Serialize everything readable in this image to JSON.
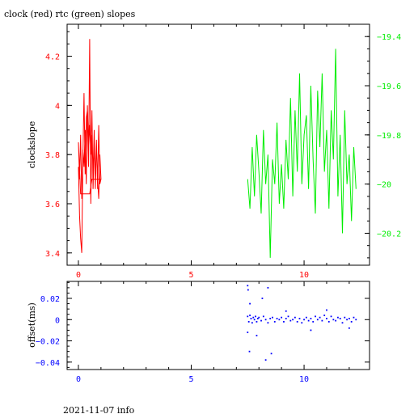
{
  "title": "clock (red) rtc (green) slopes",
  "footer": "2021-11-07 info",
  "colors": {
    "clock": "#ff0000",
    "rtc": "#00ee00",
    "offset": "#0000ff",
    "axis": "#000000"
  },
  "chart_data": [
    {
      "type": "line",
      "ylabel": "clockslope",
      "xlim": [
        -0.5,
        12.9
      ],
      "ylim": [
        3.35,
        4.33
      ],
      "y2lim": [
        -20.33,
        -19.35
      ],
      "x_ticks": [
        0,
        5,
        10
      ],
      "x_tick_labels": [
        "0",
        "5",
        "10"
      ],
      "y_ticks": [
        3.4,
        3.6,
        3.8,
        4,
        4.2
      ],
      "y_tick_labels": [
        "3.4",
        "3.6",
        "3.8",
        "4",
        "4.2"
      ],
      "y2_ticks": [
        -20.2,
        -20,
        -19.8,
        -19.6,
        -19.4
      ],
      "y2_tick_labels": [
        "−20.2",
        "−20",
        "−19.8",
        "−19.6",
        "−19.4"
      ],
      "series": [
        {
          "axis": "left",
          "color": "clock",
          "x": [
            0.0,
            0.05,
            0.1,
            0.15,
            0.2,
            0.25,
            0.3,
            0.35,
            0.4,
            0.45,
            0.5,
            0.55,
            0.6,
            0.65,
            0.7,
            0.75,
            0.8,
            0.85,
            0.9,
            0.95,
            1.0,
            0.95,
            0.9,
            0.85,
            0.8,
            0.75,
            0.7,
            0.65,
            0.6,
            0.55,
            0.5,
            0.45,
            0.4,
            0.35,
            0.3,
            0.25,
            0.2,
            0.15,
            0.1,
            0.05,
            0.0,
            0.1,
            0.2,
            0.3,
            0.4,
            0.5,
            0.6,
            0.7,
            0.8,
            0.9,
            1.0
          ],
          "y": [
            3.75,
            3.55,
            3.46,
            3.4,
            3.78,
            4.05,
            3.72,
            3.95,
            3.98,
            3.75,
            4.27,
            3.6,
            3.88,
            3.72,
            3.9,
            3.66,
            3.85,
            3.7,
            3.62,
            3.8,
            3.7,
            3.68,
            3.92,
            3.66,
            3.86,
            3.7,
            3.84,
            3.66,
            3.98,
            3.8,
            3.92,
            3.82,
            4.0,
            3.68,
            3.9,
            3.75,
            3.82,
            3.62,
            3.88,
            3.7,
            3.85,
            3.64,
            3.64,
            3.64,
            3.64,
            3.64,
            3.7,
            3.7,
            3.7,
            3.7,
            3.7
          ]
        },
        {
          "axis": "right",
          "color": "rtc",
          "x": [
            7.5,
            7.6,
            7.7,
            7.8,
            7.9,
            8.0,
            8.1,
            8.2,
            8.3,
            8.4,
            8.5,
            8.6,
            8.7,
            8.8,
            8.9,
            9.0,
            9.1,
            9.2,
            9.3,
            9.4,
            9.5,
            9.6,
            9.7,
            9.8,
            9.9,
            10.0,
            10.1,
            10.2,
            10.3,
            10.4,
            10.5,
            10.6,
            10.7,
            10.8,
            10.9,
            11.0,
            11.1,
            11.2,
            11.3,
            11.4,
            11.5,
            11.6,
            11.7,
            11.8,
            11.9,
            12.0,
            12.1,
            12.2,
            12.3
          ],
          "y": [
            -19.98,
            -20.1,
            -19.85,
            -20.05,
            -19.8,
            -19.95,
            -20.12,
            -19.78,
            -20.0,
            -19.88,
            -20.3,
            -19.9,
            -20.0,
            -19.75,
            -20.08,
            -19.92,
            -20.1,
            -19.82,
            -19.98,
            -19.65,
            -20.05,
            -19.7,
            -19.95,
            -19.55,
            -20.0,
            -19.8,
            -19.72,
            -20.02,
            -19.6,
            -19.9,
            -20.12,
            -19.62,
            -19.85,
            -19.55,
            -19.95,
            -19.78,
            -20.1,
            -19.7,
            -19.9,
            -19.45,
            -20.05,
            -19.8,
            -20.2,
            -19.7,
            -20.0,
            -19.88,
            -20.15,
            -19.85,
            -20.02
          ]
        }
      ]
    },
    {
      "type": "scatter",
      "ylabel": "offset(ms)",
      "xlim": [
        -0.5,
        12.9
      ],
      "ylim": [
        -0.047,
        0.036
      ],
      "x_ticks": [
        0,
        5,
        10
      ],
      "x_tick_labels": [
        "0",
        "5",
        "10"
      ],
      "y_ticks": [
        -0.04,
        -0.02,
        0,
        0.02
      ],
      "y_tick_labels": [
        "−0.04",
        "−0.02",
        "0",
        "0.02"
      ],
      "series": [
        {
          "color": "offset",
          "x": [
            7.5,
            7.55,
            7.6,
            7.65,
            7.7,
            7.75,
            7.8,
            7.85,
            7.9,
            7.95,
            8.0,
            8.1,
            8.2,
            8.3,
            8.4,
            8.5,
            8.6,
            8.7,
            8.8,
            8.9,
            9.0,
            9.1,
            9.2,
            9.3,
            9.4,
            9.5,
            9.6,
            9.7,
            9.8,
            9.9,
            10.0,
            10.1,
            10.2,
            10.3,
            10.4,
            10.5,
            10.6,
            10.7,
            10.8,
            10.9,
            11.0,
            11.1,
            11.2,
            11.3,
            11.4,
            11.5,
            11.6,
            11.7,
            11.8,
            11.9,
            12.0,
            12.1,
            12.2,
            12.3,
            7.5,
            7.52,
            7.58,
            8.15,
            8.3,
            8.4,
            8.55,
            7.5,
            7.6,
            7.9,
            9.2,
            10.3,
            11.0,
            12.0
          ],
          "y": [
            0.003,
            -0.002,
            0.004,
            0.001,
            -0.003,
            0.002,
            0.0,
            0.003,
            -0.002,
            0.001,
            0.002,
            -0.001,
            0.003,
            0.0,
            -0.003,
            0.001,
            0.002,
            -0.002,
            0.001,
            0.0,
            0.002,
            -0.002,
            0.001,
            0.003,
            -0.001,
            0.0,
            0.002,
            -0.002,
            0.001,
            -0.003,
            0.0,
            0.002,
            -0.001,
            0.001,
            -0.002,
            0.003,
            0.0,
            0.002,
            -0.001,
            0.004,
            0.001,
            -0.002,
            0.003,
            0.0,
            -0.001,
            0.002,
            0.001,
            -0.003,
            0.002,
            0.0,
            0.001,
            -0.002,
            0.002,
            0.0,
            0.032,
            0.028,
            -0.03,
            0.02,
            -0.038,
            0.03,
            -0.032,
            -0.012,
            0.015,
            -0.015,
            0.008,
            -0.01,
            0.009,
            -0.008
          ]
        }
      ]
    }
  ]
}
